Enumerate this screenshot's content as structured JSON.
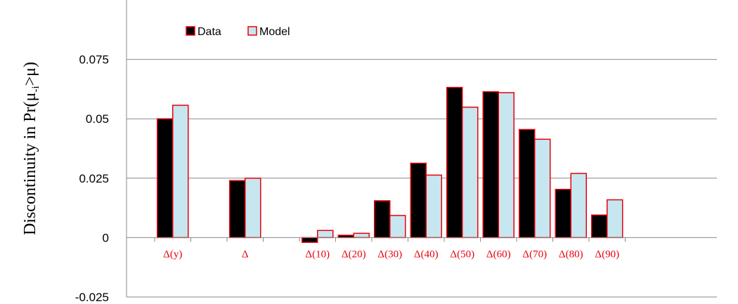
{
  "chart_data": {
    "type": "bar",
    "title": "",
    "xlabel": "",
    "ylabel": "Discontinuity in Pr(μ",
    "ylabel_sub": "-i",
    "ylabel_tail": ">μ)",
    "categories": [
      "Δ(y)",
      "Δ",
      "Δ(10)",
      "Δ(20)",
      "Δ(30)",
      "Δ(40)",
      "Δ(50)",
      "Δ(60)",
      "Δ(70)",
      "Δ(80)",
      "Δ(90)"
    ],
    "category_slots": [
      0,
      2,
      4,
      5,
      6,
      7,
      8,
      9,
      10,
      11,
      12
    ],
    "slot_count": 13,
    "series": [
      {
        "name": "Data",
        "values": [
          0.05,
          0.024,
          -0.002,
          0.001,
          0.0155,
          0.0313,
          0.0632,
          0.0614,
          0.0455,
          0.0203,
          0.0095
        ],
        "fill": "#000000",
        "stroke": "#e8000b"
      },
      {
        "name": "Model",
        "values": [
          0.0557,
          0.025,
          0.003,
          0.0018,
          0.0093,
          0.0263,
          0.0549,
          0.061,
          0.0414,
          0.027,
          0.0159
        ],
        "fill": "#c6e6f0",
        "stroke": "#e8000b"
      }
    ],
    "yticks": [
      0.075,
      0.05,
      0.025,
      0,
      -0.025
    ],
    "ytick_labels": [
      "0.075",
      "0.05",
      "0.025",
      "0",
      "-0.025"
    ],
    "ylim": [
      -0.025,
      0.1
    ],
    "grid": true,
    "legend_position": "top-left"
  }
}
